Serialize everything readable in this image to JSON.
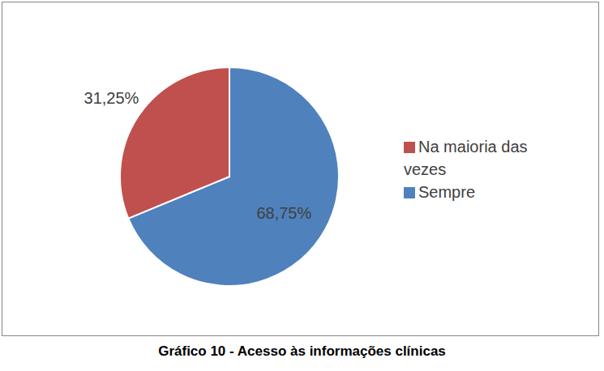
{
  "chart_data": {
    "type": "pie",
    "title": "Gráfico 10 - Acesso às informações clínicas",
    "categories": [
      "Sempre",
      "Na maioria das vezes"
    ],
    "values": [
      68.75,
      31.25
    ],
    "value_labels": [
      "68,75%",
      "31,25%"
    ],
    "colors": [
      "#4f81bd",
      "#c0504d"
    ],
    "legend": "right",
    "data_labels": true
  }
}
